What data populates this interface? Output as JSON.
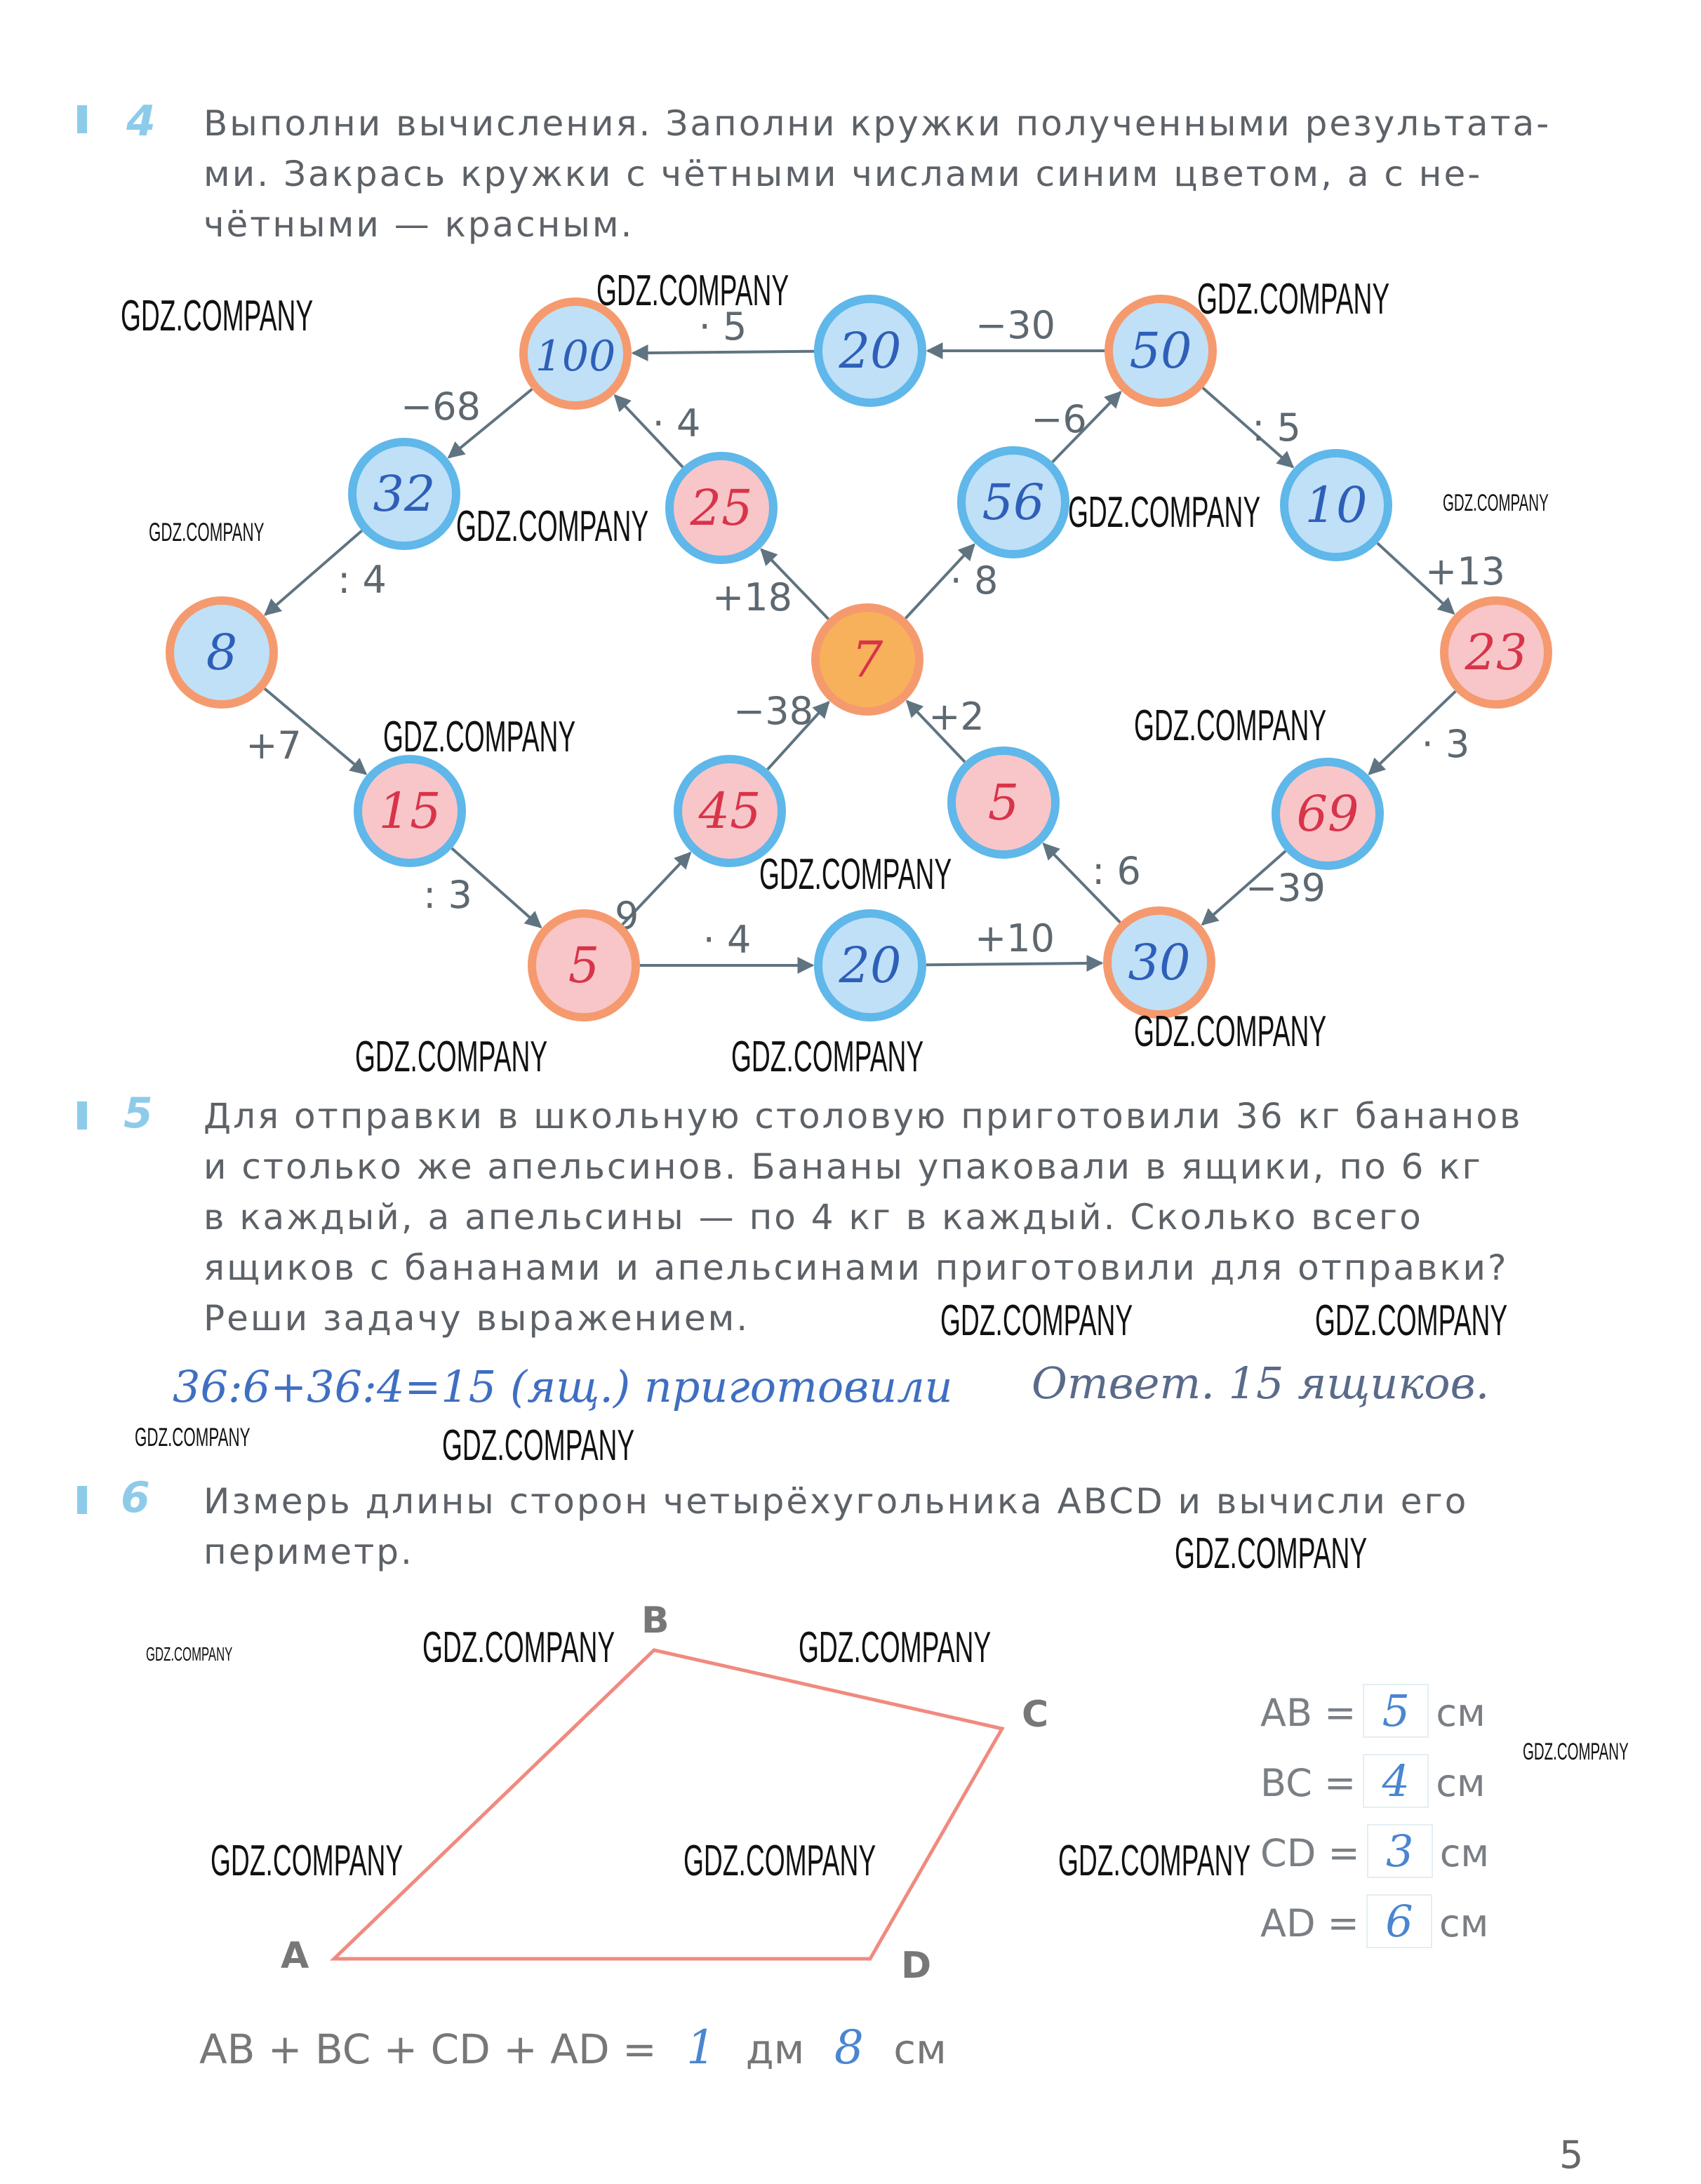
{
  "task4": {
    "number": "4",
    "lines": [
      "Выполни вычисления. Заполни кружки полученными результата-",
      "ми. Закрась кружки с чётными числами синим цветом, а с не-",
      "чётными — красным."
    ],
    "colors": {
      "even_ring": "#5fb7ea",
      "odd_ring": "#f59a6e",
      "even_fill": "#bfe0f7",
      "odd_fill": "#f8c6c8",
      "center_fill": "#f7b15a",
      "even_text": "#2e5fb8",
      "odd_text": "#d8344a",
      "arrow": "#5f7480"
    },
    "nodes": [
      {
        "id": "n100",
        "value": "100",
        "ring": "odd",
        "fill": "even"
      },
      {
        "id": "n20t",
        "value": "20",
        "ring": "even",
        "fill": "even"
      },
      {
        "id": "n50",
        "value": "50",
        "ring": "odd",
        "fill": "even"
      },
      {
        "id": "n32",
        "value": "32",
        "ring": "even",
        "fill": "even"
      },
      {
        "id": "n25",
        "value": "25",
        "ring": "even",
        "fill": "odd"
      },
      {
        "id": "n56",
        "value": "56",
        "ring": "even",
        "fill": "even"
      },
      {
        "id": "n10",
        "value": "10",
        "ring": "even",
        "fill": "even"
      },
      {
        "id": "n8",
        "value": "8",
        "ring": "odd",
        "fill": "even"
      },
      {
        "id": "n7",
        "value": "7",
        "ring": "odd",
        "fill": "center"
      },
      {
        "id": "n23",
        "value": "23",
        "ring": "odd",
        "fill": "odd"
      },
      {
        "id": "n15",
        "value": "15",
        "ring": "even",
        "fill": "odd"
      },
      {
        "id": "n45",
        "value": "45",
        "ring": "even",
        "fill": "odd"
      },
      {
        "id": "n5m",
        "value": "5",
        "ring": "even",
        "fill": "odd"
      },
      {
        "id": "n69",
        "value": "69",
        "ring": "even",
        "fill": "odd"
      },
      {
        "id": "n5b",
        "value": "5",
        "ring": "odd",
        "fill": "odd"
      },
      {
        "id": "n20b",
        "value": "20",
        "ring": "even",
        "fill": "even"
      },
      {
        "id": "n30",
        "value": "30",
        "ring": "odd",
        "fill": "even"
      }
    ],
    "edges": [
      {
        "from": "n50",
        "to": "n20t",
        "op": "−30"
      },
      {
        "from": "n20t",
        "to": "n100",
        "op": "· 5"
      },
      {
        "from": "n100",
        "to": "n32",
        "op": "−68"
      },
      {
        "from": "n32",
        "to": "n8",
        "op": ": 4"
      },
      {
        "from": "n8",
        "to": "n15",
        "op": "+7"
      },
      {
        "from": "n15",
        "to": "n5b",
        "op": ": 3"
      },
      {
        "from": "n5b",
        "to": "n45",
        "op": "· 9"
      },
      {
        "from": "n5b",
        "to": "n20b",
        "op": "· 4"
      },
      {
        "from": "n20b",
        "to": "n30",
        "op": "+10"
      },
      {
        "from": "n30",
        "to": "n5m",
        "op": ": 6"
      },
      {
        "from": "n5m",
        "to": "n7",
        "op": "+2"
      },
      {
        "from": "n45",
        "to": "n7",
        "op": "−38"
      },
      {
        "from": "n7",
        "to": "n25",
        "op": "+18"
      },
      {
        "from": "n25",
        "to": "n100",
        "op": "· 4"
      },
      {
        "from": "n7",
        "to": "n56",
        "op": "· 8"
      },
      {
        "from": "n56",
        "to": "n50",
        "op": "−6"
      },
      {
        "from": "n50",
        "to": "n10",
        "op": ": 5"
      },
      {
        "from": "n10",
        "to": "n23",
        "op": "+13"
      },
      {
        "from": "n23",
        "to": "n69",
        "op": "· 3"
      },
      {
        "from": "n69",
        "to": "n30",
        "op": "−39"
      }
    ]
  },
  "task5": {
    "number": "5",
    "lines": [
      "Для отправки в школьную столовую приготовили 36 кг бананов",
      "и столько же апельсинов. Бананы упаковали в ящики, по 6 кг",
      "в каждый, а апельсины — по 4 кг в каждый. Сколько всего",
      "ящиков с бананами и апельсинами приготовили для отправки?",
      "Реши задачу выражением."
    ],
    "solution": "36:6+36:4=15 (ящ.) приготовили",
    "answer": "Ответ. 15 ящиков."
  },
  "task6": {
    "number": "6",
    "lines": [
      "Измерь длины сторон четырёхугольника ABCD и вычисли его",
      "периметр."
    ],
    "points": {
      "A": "A",
      "B": "B",
      "C": "C",
      "D": "D"
    },
    "shape_color": "#f08a80",
    "measurements": [
      {
        "label": "AB =",
        "value": "5",
        "unit": "см"
      },
      {
        "label": "BC =",
        "value": "4",
        "unit": "см"
      },
      {
        "label": "CD =",
        "value": "3",
        "unit": "см"
      },
      {
        "label": "AD =",
        "value": "6",
        "unit": "см"
      }
    ],
    "perimeter": {
      "expr": "AB + BC + CD + AD =",
      "dm": "1",
      "dm_unit": "дм",
      "cm": "8",
      "cm_unit": "см"
    }
  },
  "page_number": "5",
  "watermarks": [
    "GDZ.COMPANY",
    "GDZ.COMPANY",
    "GDZ.COMPANY",
    "GDZ.COMPANY",
    "GDZ.COMPANY",
    "GDZ.COMPANY",
    "GDZ.COMPANY",
    "GDZ.COMPANY",
    "GDZ.COMPANY",
    "GDZ.COMPANY",
    "GDZ.COMPANY",
    "GDZ.COMPANY",
    "GDZ.COMPANY",
    "GDZ.COMPANY",
    "GDZ.COMPANY",
    "GDZ.COMPANY",
    "GDZ.COMPANY",
    "GDZ.COMPANY",
    "GDZ.COMPANY",
    "GDZ.COMPANY",
    "GDZ.COMPANY",
    "GDZ.COMPANY",
    "GDZ.COMPANY",
    "GDZ.COMPANY",
    "GDZ.COMPANY"
  ]
}
